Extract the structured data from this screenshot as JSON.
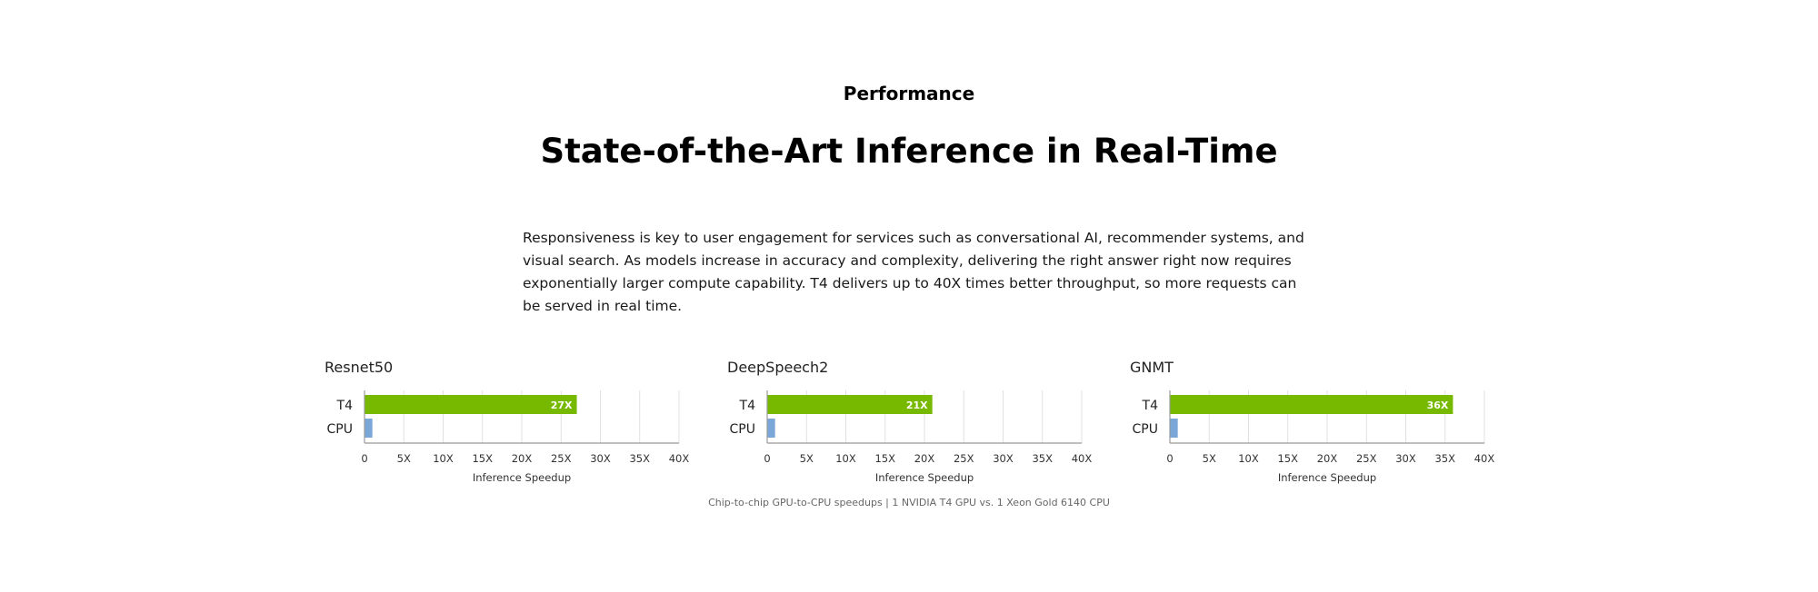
{
  "section": {
    "eyebrow": "Performance",
    "title": "State-of-the-Art Inference in Real-Time",
    "body": "Responsiveness is key to user engagement for services such as conversational AI, recommender systems, and visual search. As models increase in accuracy and complexity, delivering the right answer right now requires exponentially larger compute capability. T4 delivers up to 40X times better throughput, so more requests can be served in real time."
  },
  "colors": {
    "t4": "#76b900",
    "cpu": "#7ba6d8",
    "grid": "#e0e0e0",
    "axis": "#999999",
    "label_inside": "#ffffff"
  },
  "footnote": "Chip-to-chip GPU-to-CPU speedups | 1 NVIDIA T4 GPU vs. 1 Xeon Gold 6140 CPU",
  "chart_data": [
    {
      "type": "bar",
      "orientation": "horizontal",
      "title": "Resnet50",
      "categories": [
        "T4",
        "CPU"
      ],
      "values": [
        27,
        1
      ],
      "data_labels": [
        "27X",
        ""
      ],
      "xlabel": "Inference Speedup",
      "xlim": [
        0,
        40
      ],
      "xticks": [
        0,
        5,
        10,
        15,
        20,
        25,
        30,
        35,
        40
      ],
      "xtick_labels": [
        "0",
        "5X",
        "10X",
        "15X",
        "20X",
        "25X",
        "30X",
        "35X",
        "40X"
      ],
      "grid": true
    },
    {
      "type": "bar",
      "orientation": "horizontal",
      "title": "DeepSpeech2",
      "categories": [
        "T4",
        "CPU"
      ],
      "values": [
        21,
        1
      ],
      "data_labels": [
        "21X",
        ""
      ],
      "xlabel": "Inference Speedup",
      "xlim": [
        0,
        40
      ],
      "xticks": [
        0,
        5,
        10,
        15,
        20,
        25,
        30,
        35,
        40
      ],
      "xtick_labels": [
        "0",
        "5X",
        "10X",
        "15X",
        "20X",
        "25X",
        "30X",
        "35X",
        "40X"
      ],
      "grid": true
    },
    {
      "type": "bar",
      "orientation": "horizontal",
      "title": "GNMT",
      "categories": [
        "T4",
        "CPU"
      ],
      "values": [
        36,
        1
      ],
      "data_labels": [
        "36X",
        ""
      ],
      "xlabel": "Inference Speedup",
      "xlim": [
        0,
        40
      ],
      "xticks": [
        0,
        5,
        10,
        15,
        20,
        25,
        30,
        35,
        40
      ],
      "xtick_labels": [
        "0",
        "5X",
        "10X",
        "15X",
        "20X",
        "25X",
        "30X",
        "35X",
        "40X"
      ],
      "grid": true
    }
  ]
}
